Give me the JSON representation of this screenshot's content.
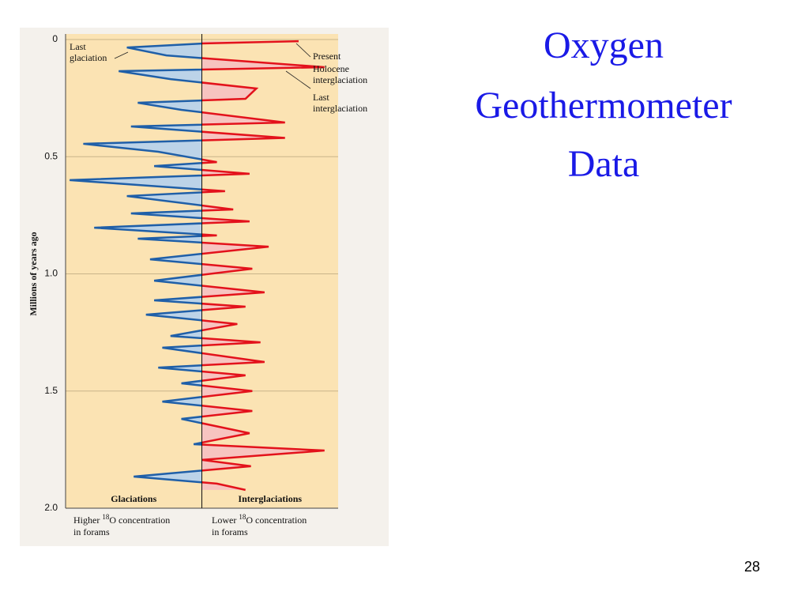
{
  "title_lines": [
    "Oxygen",
    "Geothermometer",
    "Data"
  ],
  "page_number": "28",
  "chart_data": {
    "type": "line",
    "y_label": "Millions of years ago",
    "ylim": [
      0,
      2
    ],
    "yticks": [
      0,
      0.5,
      {
        "value": 1,
        "label": "1.0"
      },
      1.5,
      {
        "value": 2,
        "label": "2.0"
      }
    ],
    "xlim": [
      -1,
      1
    ],
    "grid": true,
    "left_color": "#1f5fa8",
    "left_fill": "#bcd3e8",
    "right_color": "#e3121b",
    "right_fill": "#f7c4c0",
    "background": "#fbe3b3",
    "annotations": [
      {
        "lines": [
          "Last",
          "glaciation"
        ]
      },
      {
        "lines": [
          "Present"
        ]
      },
      {
        "lines": [
          "Holocene",
          "interglaciation"
        ]
      },
      {
        "lines": [
          "Last",
          "interglaciation"
        ]
      }
    ],
    "left_heading": "Glaciations",
    "right_heading": "Interglaciations",
    "left_caption": [
      "Higher ",
      "18",
      "O concentration",
      "in forams"
    ],
    "right_caption": [
      "Lower ",
      "18",
      "O concentration",
      "in forams"
    ],
    "y": [
      0.007,
      0.017,
      0.034,
      0.068,
      0.118,
      0.135,
      0.169,
      0.209,
      0.253,
      0.27,
      0.3,
      0.354,
      0.371,
      0.42,
      0.445,
      0.479,
      0.523,
      0.54,
      0.573,
      0.6,
      0.647,
      0.668,
      0.725,
      0.742,
      0.776,
      0.803,
      0.836,
      0.85,
      0.884,
      0.938,
      0.978,
      1.029,
      1.079,
      1.113,
      1.14,
      1.174,
      1.214,
      1.265,
      1.292,
      1.315,
      1.376,
      1.4,
      1.433,
      1.467,
      1.5,
      1.545,
      1.585,
      1.619,
      1.68,
      1.727,
      1.754,
      1.794,
      1.821,
      1.865,
      1.895,
      1.922
    ],
    "x": [
      0.71,
      0,
      -0.55,
      -0.26,
      0.9,
      -0.61,
      -0.23,
      0.4,
      0.32,
      -0.47,
      -0.15,
      0.61,
      -0.52,
      0.61,
      -0.87,
      -0.32,
      0.11,
      -0.35,
      0.35,
      -0.97,
      0.17,
      -0.55,
      0.23,
      -0.52,
      0.35,
      -0.79,
      0.11,
      -0.47,
      0.49,
      -0.38,
      0.37,
      -0.35,
      0.46,
      -0.35,
      0.32,
      -0.41,
      0.26,
      -0.23,
      0.43,
      -0.29,
      0.46,
      -0.32,
      0.32,
      -0.15,
      0.37,
      -0.29,
      0.37,
      -0.15,
      0.35,
      -0.06,
      0.9,
      0,
      0.36,
      -0.5,
      0.11,
      0.32
    ]
  }
}
